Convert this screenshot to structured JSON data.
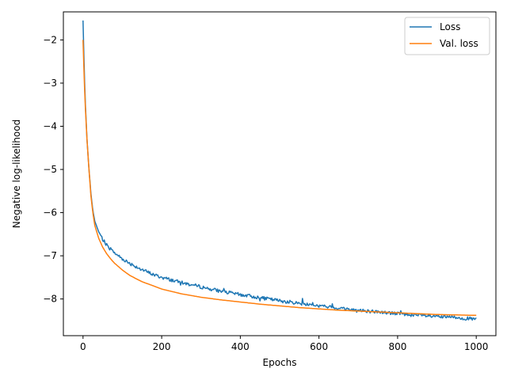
{
  "chart_data": {
    "type": "line",
    "title": "",
    "xlabel": "Epochs",
    "ylabel": "Negative log-likelihood",
    "xlim": [
      -50,
      1050
    ],
    "ylim": [
      -8.85,
      -1.35
    ],
    "xticks": [
      0,
      200,
      400,
      600,
      800,
      1000
    ],
    "yticks": [
      -8,
      -7,
      -6,
      -5,
      -4,
      -3,
      -2
    ],
    "grid": false,
    "legend": "top-right",
    "series": [
      {
        "name": "Loss",
        "color": "#1f77b4",
        "noisy": true,
        "x": [
          0,
          2,
          5,
          10,
          15,
          20,
          25,
          30,
          40,
          50,
          60,
          70,
          80,
          100,
          120,
          150,
          180,
          200,
          250,
          300,
          350,
          400,
          450,
          500,
          550,
          600,
          650,
          700,
          750,
          800,
          850,
          900,
          950,
          1000
        ],
        "y": [
          -1.55,
          -2.3,
          -3.3,
          -4.3,
          -5.0,
          -5.55,
          -5.95,
          -6.2,
          -6.45,
          -6.62,
          -6.75,
          -6.85,
          -6.93,
          -7.07,
          -7.18,
          -7.32,
          -7.44,
          -7.5,
          -7.62,
          -7.72,
          -7.82,
          -7.9,
          -7.97,
          -8.04,
          -8.1,
          -8.16,
          -8.21,
          -8.26,
          -8.3,
          -8.34,
          -8.38,
          -8.41,
          -8.43,
          -8.47
        ]
      },
      {
        "name": "Val. loss",
        "color": "#ff7f0e",
        "noisy": false,
        "x": [
          0,
          2,
          5,
          10,
          15,
          20,
          25,
          30,
          40,
          50,
          60,
          70,
          80,
          100,
          120,
          150,
          180,
          200,
          250,
          300,
          350,
          400,
          450,
          500,
          550,
          600,
          650,
          700,
          750,
          800,
          850,
          900,
          950,
          1000
        ],
        "y": [
          -2.0,
          -2.6,
          -3.4,
          -4.3,
          -5.0,
          -5.6,
          -6.0,
          -6.3,
          -6.6,
          -6.8,
          -6.95,
          -7.07,
          -7.17,
          -7.33,
          -7.46,
          -7.6,
          -7.7,
          -7.77,
          -7.88,
          -7.96,
          -8.02,
          -8.07,
          -8.12,
          -8.16,
          -8.2,
          -8.23,
          -8.26,
          -8.28,
          -8.3,
          -8.32,
          -8.34,
          -8.36,
          -8.37,
          -8.38
        ]
      }
    ]
  }
}
